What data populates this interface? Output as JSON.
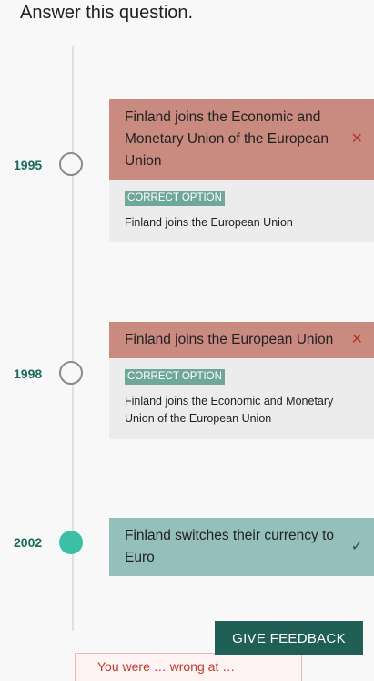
{
  "question": "Answer this question.",
  "items": [
    {
      "year": "1995",
      "answer": "Finland joins the Economic and Monetary Union of the European Union",
      "status": "wrong",
      "mark": "✕",
      "correct_label": "CORRECT OPTION",
      "correct_text": "Finland joins the European Union"
    },
    {
      "year": "1998",
      "answer": "Finland joins the European Union",
      "status": "wrong",
      "mark": "✕",
      "correct_label": "CORRECT OPTION",
      "correct_text": "Finland joins the Economic and Monetary Union of the European Union"
    },
    {
      "year": "2002",
      "answer": "Finland switches their currency to Euro",
      "status": "correct",
      "mark": "✓"
    }
  ],
  "feedback_button": "GIVE FEEDBACK",
  "result_text": "You were … wrong at …",
  "colors": {
    "wrong": "#c98a80",
    "right": "#94bfbb",
    "accent": "#1f5f56",
    "dot_filled": "#3bbfa6"
  }
}
